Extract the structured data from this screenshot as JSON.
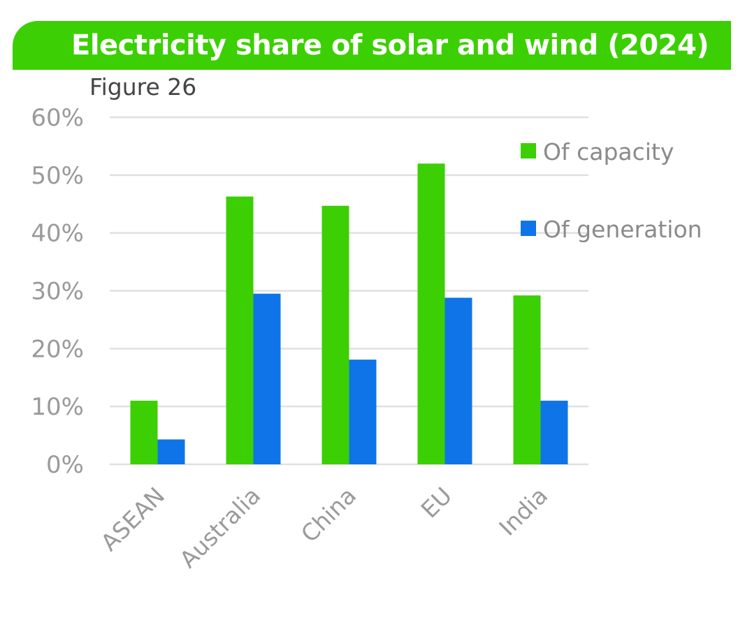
{
  "header": {
    "title": "Electricity share of solar and wind (2024)",
    "figure_label": "Figure 26",
    "banner_color": "#3ccf03"
  },
  "chart_data": {
    "type": "bar",
    "title": "Electricity share of solar and wind (2024)",
    "categories": [
      "ASEAN",
      "Australia",
      "China",
      "EU",
      "India"
    ],
    "series": [
      {
        "name": "Of capacity",
        "color": "#3ccf03",
        "values": [
          11,
          46.3,
          44.7,
          52,
          29.2
        ]
      },
      {
        "name": "Of generation",
        "color": "#0f74e8",
        "values": [
          4.3,
          29.5,
          18.1,
          28.8,
          11
        ]
      }
    ],
    "ylim": [
      0,
      60
    ],
    "yticks": [
      0,
      10,
      20,
      30,
      40,
      50,
      60
    ],
    "ytick_labels": [
      "0%",
      "10%",
      "20%",
      "30%",
      "40%",
      "50%",
      "60%"
    ],
    "xlabel": "",
    "ylabel": "",
    "grid": true,
    "legend": "right"
  }
}
